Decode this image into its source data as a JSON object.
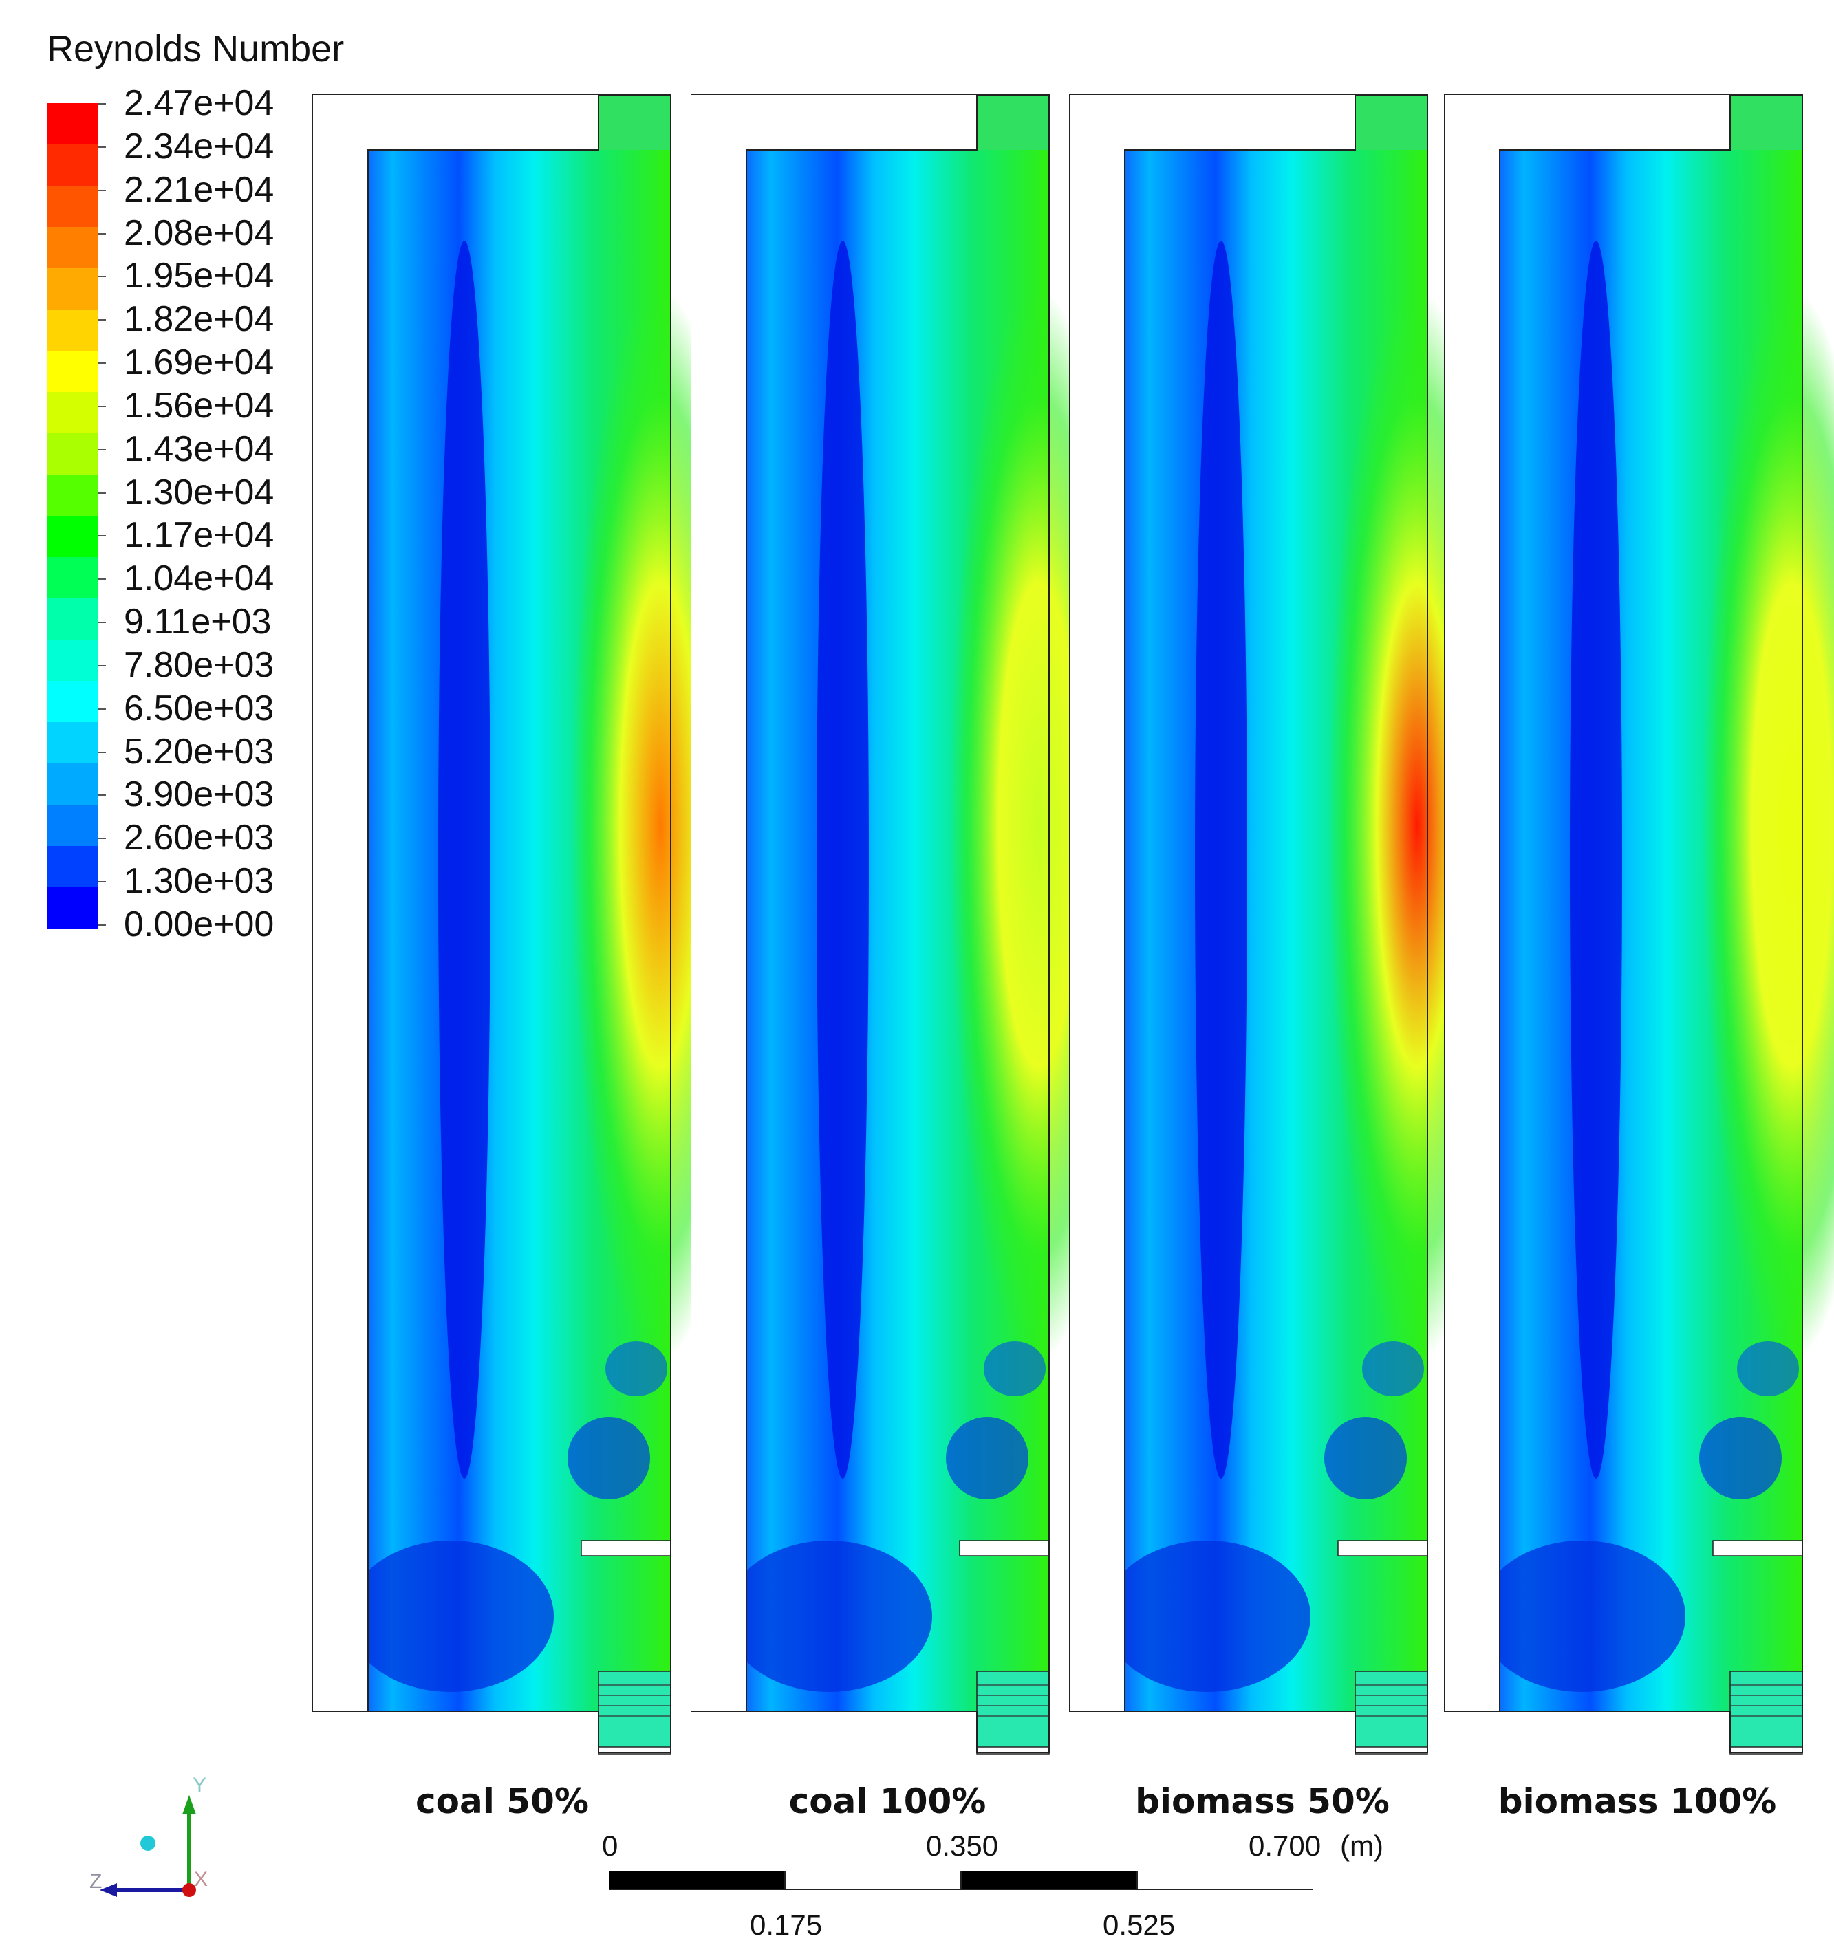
{
  "legend": {
    "title": "Reynolds Number",
    "labels": [
      "2.47e+04",
      "2.34e+04",
      "2.21e+04",
      "2.08e+04",
      "1.95e+04",
      "1.82e+04",
      "1.69e+04",
      "1.56e+04",
      "1.43e+04",
      "1.30e+04",
      "1.17e+04",
      "1.04e+04",
      "9.11e+03",
      "7.80e+03",
      "6.50e+03",
      "5.20e+03",
      "3.90e+03",
      "2.60e+03",
      "1.30e+03",
      "0.00e+00"
    ],
    "colors": [
      "#ff0000",
      "#ff2a00",
      "#ff5500",
      "#ff8000",
      "#ffaa00",
      "#ffd400",
      "#ffff00",
      "#d4ff00",
      "#aaff00",
      "#55ff00",
      "#00ff00",
      "#00ff55",
      "#00ffaa",
      "#00ffd4",
      "#00ffff",
      "#00d4ff",
      "#00aaff",
      "#0080ff",
      "#0040ff",
      "#0000ff"
    ]
  },
  "cases": [
    {
      "label": "coal 50%",
      "peak_color": "#ff7a00"
    },
    {
      "label": "coal 100%",
      "peak_color": "#c8ff20"
    },
    {
      "label": "biomass 50%",
      "peak_color": "#ff1a00"
    },
    {
      "label": "biomass 100%",
      "peak_color": "#e8ff10"
    }
  ],
  "scale": {
    "top_labels": [
      "0",
      "0.350",
      "0.700"
    ],
    "bottom_labels": [
      "0.175",
      "0.525"
    ],
    "unit": "(m)"
  },
  "triad": {
    "y": "Y",
    "z": "Z",
    "x": "X"
  }
}
